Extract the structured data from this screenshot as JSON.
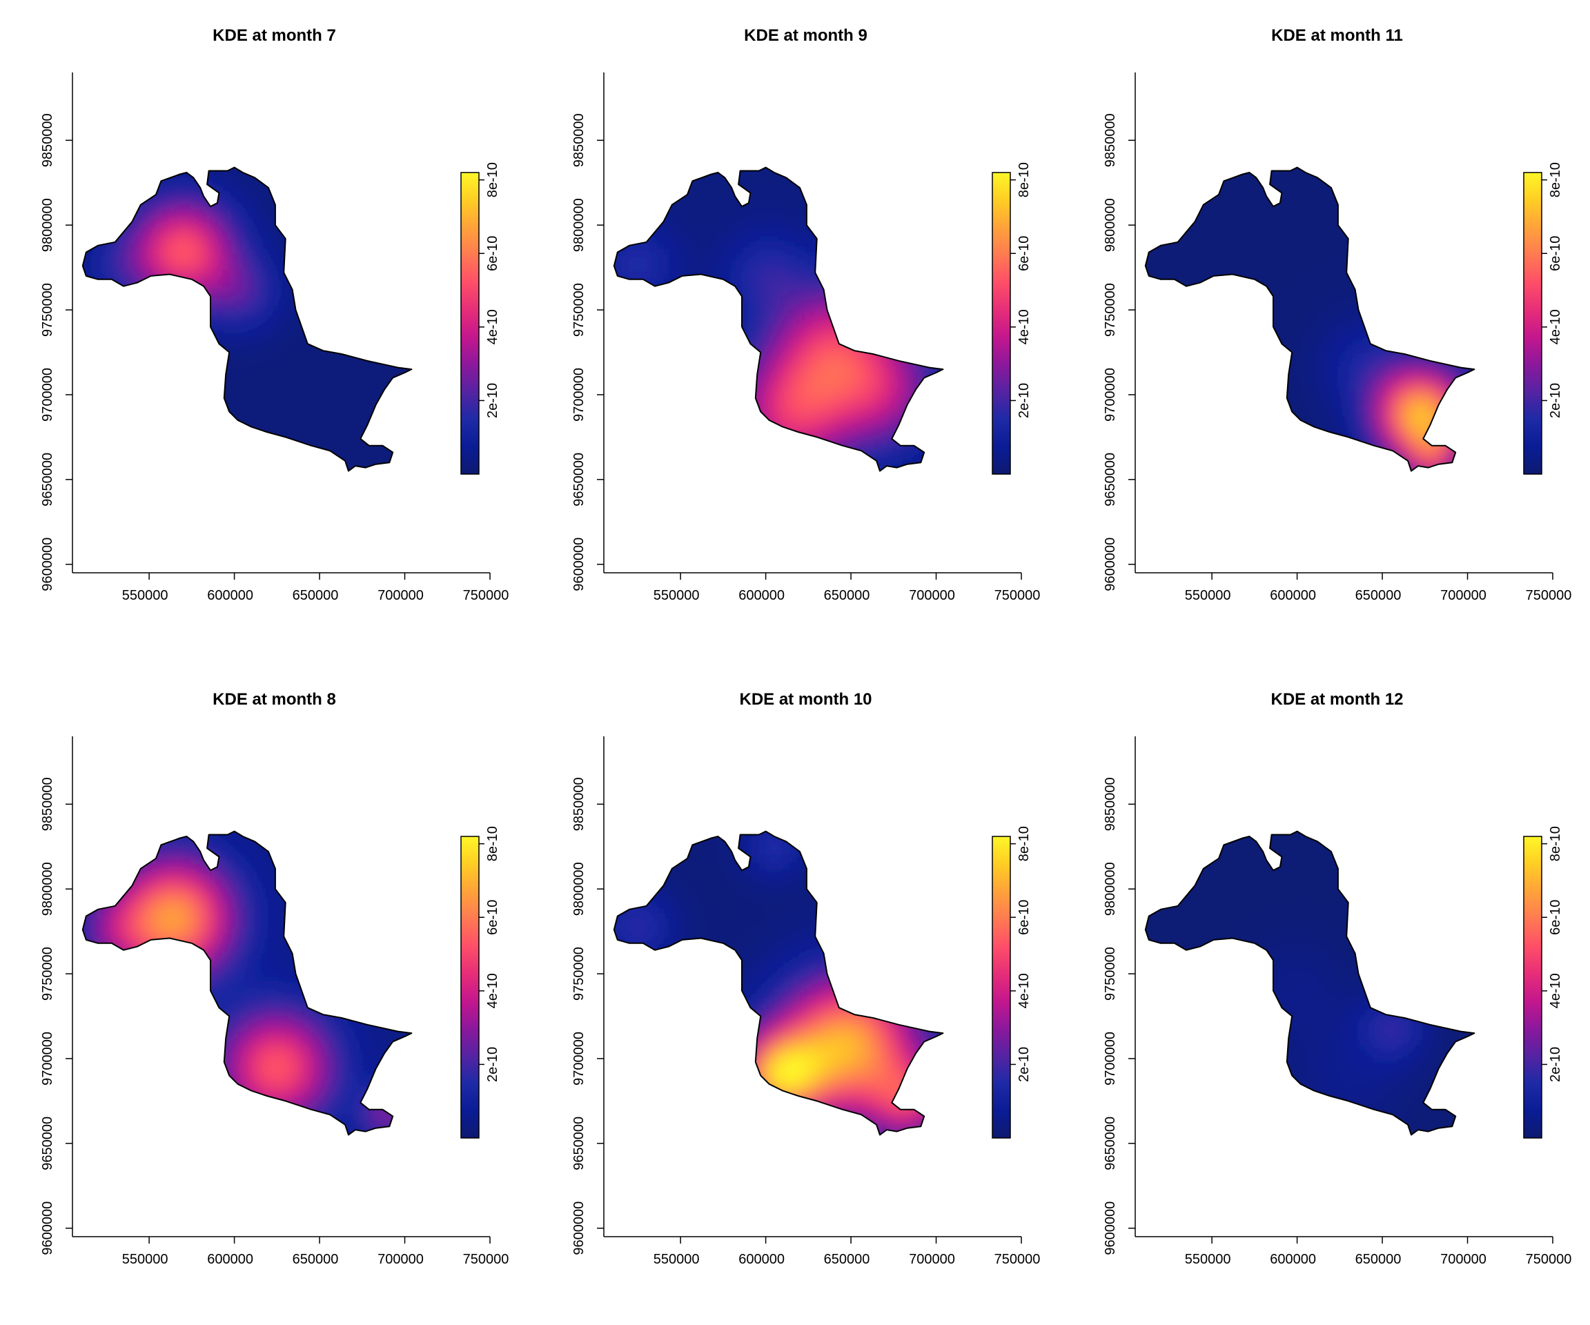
{
  "chart_data": {
    "type": "heatmap",
    "colorbar": {
      "ticks": [
        "2e-10",
        "4e-10",
        "6e-10",
        "8e-10"
      ],
      "tick_values": [
        2e-10,
        4e-10,
        6e-10,
        8e-10
      ],
      "range": [
        0,
        8.2e-10
      ],
      "stops": [
        "#0d1a70",
        "#0a1c95",
        "#1e2aa6",
        "#5523a2",
        "#8c189c",
        "#c4178d",
        "#e72e78",
        "#ff4f68",
        "#ff7a52",
        "#ffa23a",
        "#ffce24",
        "#fff629"
      ]
    },
    "axes": {
      "xlim": [
        505000,
        750000
      ],
      "ylim": [
        9595000,
        9890000
      ],
      "xticks": [
        "550000",
        "600000",
        "650000",
        "700000",
        "750000"
      ],
      "xtick_values": [
        550000,
        600000,
        650000,
        700000,
        750000
      ],
      "yticks": [
        "9600000",
        "9650000",
        "9700000",
        "9750000",
        "9800000",
        "9850000"
      ],
      "ytick_values": [
        9600000,
        9650000,
        9700000,
        9750000,
        9800000,
        9850000
      ]
    },
    "region_outline": [
      [
        513000,
        9770000
      ],
      [
        511000,
        9776000
      ],
      [
        513000,
        9784000
      ],
      [
        520000,
        9788000
      ],
      [
        530000,
        9790000
      ],
      [
        540000,
        9802000
      ],
      [
        545000,
        9812000
      ],
      [
        554000,
        9818000
      ],
      [
        557000,
        9826000
      ],
      [
        568000,
        9830000
      ],
      [
        572000,
        9831000
      ],
      [
        576000,
        9828000
      ],
      [
        580000,
        9822000
      ],
      [
        582000,
        9817000
      ],
      [
        586000,
        9811000
      ],
      [
        590000,
        9813000
      ],
      [
        591000,
        9819000
      ],
      [
        584000,
        9824000
      ],
      [
        585000,
        9832000
      ],
      [
        596000,
        9832000
      ],
      [
        600000,
        9834000
      ],
      [
        605000,
        9831000
      ],
      [
        612000,
        9828000
      ],
      [
        620000,
        9822000
      ],
      [
        624000,
        9812000
      ],
      [
        624000,
        9800000
      ],
      [
        630000,
        9792000
      ],
      [
        629000,
        9772000
      ],
      [
        634000,
        9762000
      ],
      [
        636000,
        9750000
      ],
      [
        643000,
        9730000
      ],
      [
        652000,
        9726000
      ],
      [
        663000,
        9724000
      ],
      [
        678000,
        9720000
      ],
      [
        696000,
        9716000
      ],
      [
        704000,
        9715000
      ],
      [
        700000,
        9713000
      ],
      [
        693000,
        9710000
      ],
      [
        688000,
        9703000
      ],
      [
        683000,
        9694000
      ],
      [
        678000,
        9682000
      ],
      [
        674000,
        9674000
      ],
      [
        679000,
        9670000
      ],
      [
        687000,
        9670000
      ],
      [
        693000,
        9666000
      ],
      [
        691000,
        9660000
      ],
      [
        683000,
        9659000
      ],
      [
        677000,
        9657000
      ],
      [
        671000,
        9658000
      ],
      [
        667000,
        9655000
      ],
      [
        665000,
        9661000
      ],
      [
        656000,
        9667000
      ],
      [
        645000,
        9670000
      ],
      [
        636000,
        9673000
      ],
      [
        630000,
        9675000
      ],
      [
        619000,
        9678000
      ],
      [
        610000,
        9681000
      ],
      [
        602000,
        9685000
      ],
      [
        597000,
        9690000
      ],
      [
        594000,
        9698000
      ],
      [
        595000,
        9712000
      ],
      [
        597000,
        9725000
      ],
      [
        591000,
        9730000
      ],
      [
        586000,
        9740000
      ],
      [
        586000,
        9758000
      ],
      [
        582000,
        9764000
      ],
      [
        575000,
        9768000
      ],
      [
        562000,
        9771000
      ],
      [
        551000,
        9770000
      ],
      [
        543000,
        9766000
      ],
      [
        535000,
        9764000
      ],
      [
        528000,
        9768000
      ],
      [
        520000,
        9768000
      ],
      [
        513000,
        9770000
      ]
    ],
    "panels": [
      {
        "title": "KDE at month 7",
        "row": 0,
        "col": 0,
        "background": 2e-11,
        "hotspots": [
          {
            "x": 570000,
            "y": 9785000,
            "peak": 5.2e-10,
            "sigma": 21000
          },
          {
            "x": 605000,
            "y": 9760000,
            "peak": 1.6e-10,
            "sigma": 15000
          },
          {
            "x": 530000,
            "y": 9775000,
            "peak": 8e-11,
            "sigma": 15000
          }
        ]
      },
      {
        "title": "KDE at month 8",
        "row": 1,
        "col": 0,
        "background": 4e-11,
        "hotspots": [
          {
            "x": 565000,
            "y": 9783000,
            "peak": 6.3e-10,
            "sigma": 24000
          },
          {
            "x": 625000,
            "y": 9695000,
            "peak": 5e-10,
            "sigma": 23000
          },
          {
            "x": 690000,
            "y": 9668000,
            "peak": 2.5e-10,
            "sigma": 11000
          },
          {
            "x": 530000,
            "y": 9775000,
            "peak": 1.5e-10,
            "sigma": 15000
          }
        ]
      },
      {
        "title": "KDE at month 9",
        "row": 0,
        "col": 1,
        "background": 3e-11,
        "hotspots": [
          {
            "x": 640000,
            "y": 9728000,
            "peak": 4e-10,
            "sigma": 26000
          },
          {
            "x": 615000,
            "y": 9688000,
            "peak": 3.8e-10,
            "sigma": 24000
          },
          {
            "x": 670000,
            "y": 9700000,
            "peak": 2.6e-10,
            "sigma": 22000
          },
          {
            "x": 525000,
            "y": 9777000,
            "peak": 1.3e-10,
            "sigma": 15000
          },
          {
            "x": 600000,
            "y": 9772000,
            "peak": 1.2e-10,
            "sigma": 16000
          }
        ]
      },
      {
        "title": "KDE at month 10",
        "row": 1,
        "col": 1,
        "background": 2e-11,
        "hotspots": [
          {
            "x": 648000,
            "y": 9708000,
            "peak": 6.8e-10,
            "sigma": 28000
          },
          {
            "x": 608000,
            "y": 9690000,
            "peak": 6.2e-10,
            "sigma": 17000
          },
          {
            "x": 685000,
            "y": 9675000,
            "peak": 3.6e-10,
            "sigma": 16000
          },
          {
            "x": 525000,
            "y": 9778000,
            "peak": 1.5e-10,
            "sigma": 14000
          },
          {
            "x": 605000,
            "y": 9825000,
            "peak": 1.4e-10,
            "sigma": 12000
          }
        ]
      },
      {
        "title": "KDE at month 11",
        "row": 0,
        "col": 2,
        "background": 1.5e-11,
        "hotspots": [
          {
            "x": 673000,
            "y": 9688000,
            "peak": 7.2e-10,
            "sigma": 19000
          },
          {
            "x": 680000,
            "y": 9662000,
            "peak": 2.6e-10,
            "sigma": 10000
          },
          {
            "x": 640000,
            "y": 9718000,
            "peak": 1e-10,
            "sigma": 18000
          }
        ]
      },
      {
        "title": "KDE at month 12",
        "row": 1,
        "col": 2,
        "background": 1e-11,
        "hotspots": [
          {
            "x": 656000,
            "y": 9718000,
            "peak": 1.6e-10,
            "sigma": 13000
          },
          {
            "x": 630000,
            "y": 9690000,
            "peak": 5e-11,
            "sigma": 25000
          },
          {
            "x": 600000,
            "y": 9740000,
            "peak": 4e-11,
            "sigma": 20000
          }
        ]
      }
    ]
  }
}
